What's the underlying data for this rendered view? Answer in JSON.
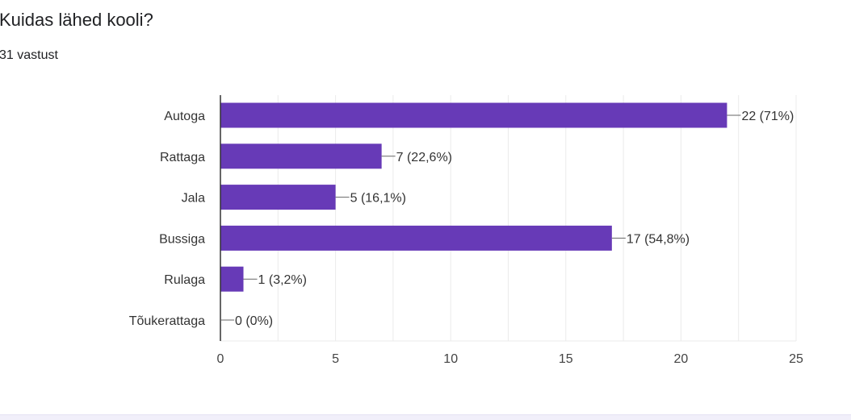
{
  "question": {
    "title": "Kuidas lähed kooli?",
    "responses": "31 vastust"
  },
  "colors": {
    "bar": "#673ab7",
    "grid": "#ebebeb",
    "axis": "#333333",
    "text": "#202124"
  },
  "chart_data": {
    "type": "bar",
    "orientation": "horizontal",
    "title": "",
    "xlabel": "",
    "ylabel": "",
    "categories": [
      "Autoga",
      "Rattaga",
      "Jala",
      "Bussiga",
      "Rulaga",
      "Tõukerattaga"
    ],
    "values": [
      22,
      7,
      5,
      17,
      1,
      0
    ],
    "data_labels": [
      "22 (71%)",
      "7 (22,6%)",
      "5 (16,1%)",
      "17 (54,8%)",
      "1 (3,2%)",
      "0 (0%)"
    ],
    "xlim": [
      0,
      25
    ],
    "xticks": [
      0,
      5,
      10,
      15,
      20,
      25
    ],
    "grid": true,
    "legend": "none"
  }
}
